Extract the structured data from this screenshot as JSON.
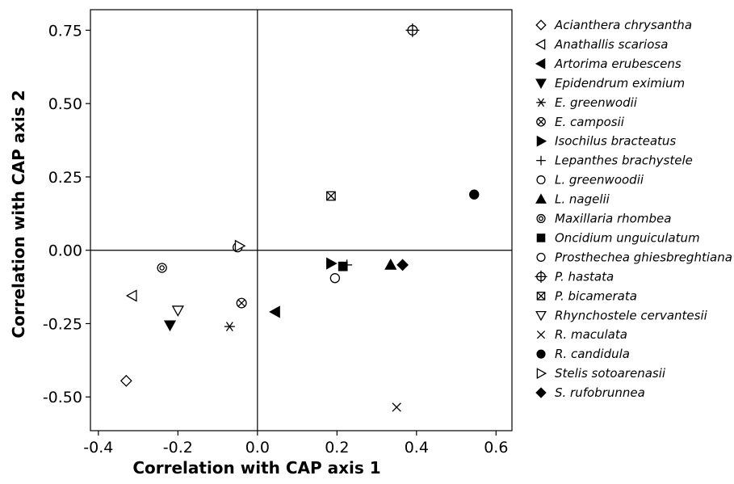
{
  "chart_data": {
    "type": "scatter",
    "xlabel": "Correlation with CAP axis 1",
    "ylabel": "Correlation with CAP axis 2",
    "xlim": [
      -0.42,
      0.64
    ],
    "ylim": [
      -0.615,
      0.82
    ],
    "xticks": [
      -0.4,
      -0.2,
      0.0,
      0.2,
      0.4,
      0.6
    ],
    "xtick_labels": [
      "-0.4",
      "-0.2",
      "0.0",
      "0.2",
      "0.4",
      "0.6"
    ],
    "yticks": [
      -0.5,
      -0.25,
      0.0,
      0.25,
      0.5,
      0.75
    ],
    "ytick_labels": [
      "-0.50",
      "-0.25",
      "0.00",
      "0.25",
      "0.50",
      "0.75"
    ],
    "reference_lines": {
      "x": 0,
      "y": 0
    },
    "grid": false,
    "legend_position": "right",
    "series": [
      {
        "name": "Acianthera chrysantha",
        "marker": "diamond-open",
        "x": -0.33,
        "y": -0.445
      },
      {
        "name": "Anathallis scariosa",
        "marker": "triangle-left-open",
        "x": -0.315,
        "y": -0.155
      },
      {
        "name": "Artorima erubescens",
        "marker": "triangle-left-filled",
        "x": 0.045,
        "y": -0.21
      },
      {
        "name": "Epidendrum eximium",
        "marker": "triangle-down-filled",
        "x": -0.22,
        "y": -0.255
      },
      {
        "name": "E. greenwodii",
        "marker": "asterisk",
        "x": -0.07,
        "y": -0.26
      },
      {
        "name": "E. camposii",
        "marker": "circle-x",
        "x": -0.04,
        "y": -0.18
      },
      {
        "name": "Isochilus bracteatus",
        "marker": "triangle-right-filled",
        "x": 0.185,
        "y": -0.045
      },
      {
        "name": "Lepanthes brachystele",
        "marker": "plus",
        "x": 0.225,
        "y": -0.05
      },
      {
        "name": "L. greenwoodii",
        "marker": "circle-open",
        "x": -0.05,
        "y": 0.01
      },
      {
        "name": "L. nagelii",
        "marker": "triangle-up-filled",
        "x": 0.335,
        "y": -0.05
      },
      {
        "name": "Maxillaria rhombea",
        "marker": "circle-dot",
        "x": -0.24,
        "y": -0.06
      },
      {
        "name": "Oncidium unguiculatum",
        "marker": "square-filled",
        "x": 0.215,
        "y": -0.055
      },
      {
        "name": "Prosthechea ghiesbreghtiana",
        "marker": "circle-open",
        "x": 0.195,
        "y": -0.095
      },
      {
        "name": "P. hastata",
        "marker": "circle-plus",
        "x": 0.39,
        "y": 0.75
      },
      {
        "name": "P. bicamerata",
        "marker": "square-x",
        "x": 0.185,
        "y": 0.185
      },
      {
        "name": "Rhynchostele cervantesii",
        "marker": "triangle-down-open",
        "x": -0.2,
        "y": -0.205
      },
      {
        "name": "R. maculata",
        "marker": "x",
        "x": 0.35,
        "y": -0.535
      },
      {
        "name": "R. candidula",
        "marker": "circle-filled",
        "x": 0.545,
        "y": 0.19
      },
      {
        "name": "Stelis sotoarenasii",
        "marker": "triangle-right-open",
        "x": -0.045,
        "y": 0.015
      },
      {
        "name": "S. rufobrunnea",
        "marker": "diamond-filled",
        "x": 0.365,
        "y": -0.05
      }
    ]
  }
}
